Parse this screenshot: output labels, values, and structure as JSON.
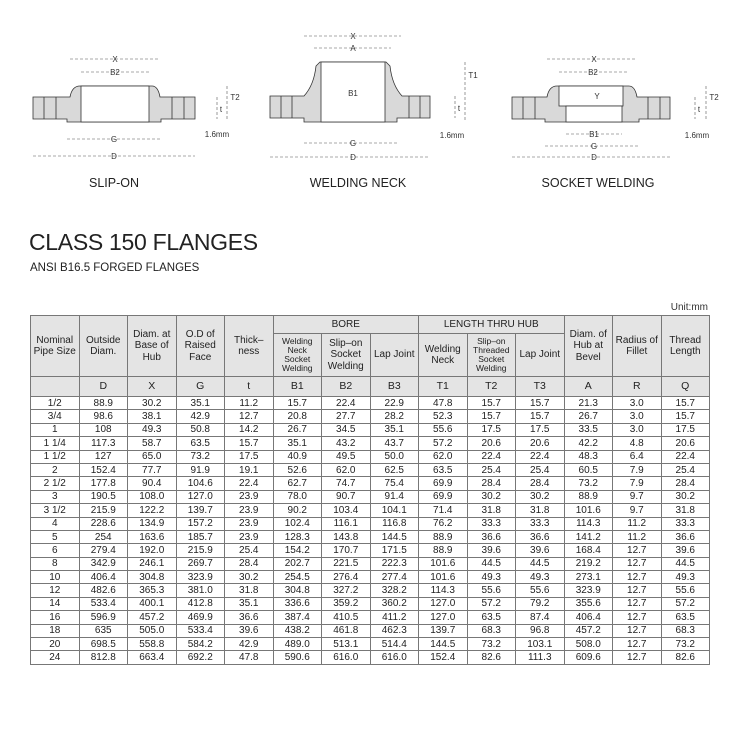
{
  "diagrams": {
    "slip_on": {
      "caption": "SLIP-ON",
      "labels": {
        "x": "X",
        "b2": "B2",
        "g": "G",
        "d": "D",
        "t": "t",
        "t2": "T2",
        "gap": "1.6mm"
      }
    },
    "welding_neck": {
      "caption": "WELDING NECK",
      "labels": {
        "x": "X",
        "a": "A",
        "b1": "B1",
        "g": "G",
        "d": "D",
        "t": "t",
        "t1": "T1",
        "gap": "1.6mm"
      }
    },
    "socket_welding": {
      "caption": "SOCKET WELDING",
      "labels": {
        "x": "X",
        "b2": "B2",
        "y": "Y",
        "b1": "B1",
        "g": "G",
        "d": "D",
        "t": "t",
        "t2": "T2",
        "gap": "1.6mm"
      }
    }
  },
  "title": "CLASS 150 FLANGES",
  "subtitle": "ANSI B16.5 FORGED FLANGES",
  "unit": "Unit:mm",
  "table": {
    "group_headers": {
      "bore": "BORE",
      "length_thru_hub": "LENGTH THRU HUB"
    },
    "headers": [
      "Nominal Pipe Size",
      "Outside Diam.",
      "Diam. at Base of Hub",
      "O.D of Raised Face",
      "Thick–ness",
      "Welding Neck Socket Welding",
      "Slip–on Socket Welding",
      "Lap Joint",
      "Welding Neck",
      "Slip–on Threaded Socket Welding",
      "Lap Joint",
      "Diam. of Hub at Bevel",
      "Radius of Fillet",
      "Thread Length"
    ],
    "symbols": [
      "",
      "D",
      "X",
      "G",
      "t",
      "B1",
      "B2",
      "B3",
      "T1",
      "T2",
      "T3",
      "A",
      "R",
      "Q"
    ],
    "rows": [
      [
        "1/2",
        "88.9",
        "30.2",
        "35.1",
        "11.2",
        "15.7",
        "22.4",
        "22.9",
        "47.8",
        "15.7",
        "15.7",
        "21.3",
        "3.0",
        "15.7"
      ],
      [
        "3/4",
        "98.6",
        "38.1",
        "42.9",
        "12.7",
        "20.8",
        "27.7",
        "28.2",
        "52.3",
        "15.7",
        "15.7",
        "26.7",
        "3.0",
        "15.7"
      ],
      [
        "1",
        "108",
        "49.3",
        "50.8",
        "14.2",
        "26.7",
        "34.5",
        "35.1",
        "55.6",
        "17.5",
        "17.5",
        "33.5",
        "3.0",
        "17.5"
      ],
      [
        "1 1/4",
        "117.3",
        "58.7",
        "63.5",
        "15.7",
        "35.1",
        "43.2",
        "43.7",
        "57.2",
        "20.6",
        "20.6",
        "42.2",
        "4.8",
        "20.6"
      ],
      [
        "1 1/2",
        "127",
        "65.0",
        "73.2",
        "17.5",
        "40.9",
        "49.5",
        "50.0",
        "62.0",
        "22.4",
        "22.4",
        "48.3",
        "6.4",
        "22.4"
      ],
      [
        "2",
        "152.4",
        "77.7",
        "91.9",
        "19.1",
        "52.6",
        "62.0",
        "62.5",
        "63.5",
        "25.4",
        "25.4",
        "60.5",
        "7.9",
        "25.4"
      ],
      [
        "2 1/2",
        "177.8",
        "90.4",
        "104.6",
        "22.4",
        "62.7",
        "74.7",
        "75.4",
        "69.9",
        "28.4",
        "28.4",
        "73.2",
        "7.9",
        "28.4"
      ],
      [
        "3",
        "190.5",
        "108.0",
        "127.0",
        "23.9",
        "78.0",
        "90.7",
        "91.4",
        "69.9",
        "30.2",
        "30.2",
        "88.9",
        "9.7",
        "30.2"
      ],
      [
        "3 1/2",
        "215.9",
        "122.2",
        "139.7",
        "23.9",
        "90.2",
        "103.4",
        "104.1",
        "71.4",
        "31.8",
        "31.8",
        "101.6",
        "9.7",
        "31.8"
      ],
      [
        "4",
        "228.6",
        "134.9",
        "157.2",
        "23.9",
        "102.4",
        "116.1",
        "116.8",
        "76.2",
        "33.3",
        "33.3",
        "114.3",
        "11.2",
        "33.3"
      ],
      [
        "5",
        "254",
        "163.6",
        "185.7",
        "23.9",
        "128.3",
        "143.8",
        "144.5",
        "88.9",
        "36.6",
        "36.6",
        "141.2",
        "11.2",
        "36.6"
      ],
      [
        "6",
        "279.4",
        "192.0",
        "215.9",
        "25.4",
        "154.2",
        "170.7",
        "171.5",
        "88.9",
        "39.6",
        "39.6",
        "168.4",
        "12.7",
        "39.6"
      ],
      [
        "8",
        "342.9",
        "246.1",
        "269.7",
        "28.4",
        "202.7",
        "221.5",
        "222.3",
        "101.6",
        "44.5",
        "44.5",
        "219.2",
        "12.7",
        "44.5"
      ],
      [
        "10",
        "406.4",
        "304.8",
        "323.9",
        "30.2",
        "254.5",
        "276.4",
        "277.4",
        "101.6",
        "49.3",
        "49.3",
        "273.1",
        "12.7",
        "49.3"
      ],
      [
        "12",
        "482.6",
        "365.3",
        "381.0",
        "31.8",
        "304.8",
        "327.2",
        "328.2",
        "114.3",
        "55.6",
        "55.6",
        "323.9",
        "12.7",
        "55.6"
      ],
      [
        "14",
        "533.4",
        "400.1",
        "412.8",
        "35.1",
        "336.6",
        "359.2",
        "360.2",
        "127.0",
        "57.2",
        "79.2",
        "355.6",
        "12.7",
        "57.2"
      ],
      [
        "16",
        "596.9",
        "457.2",
        "469.9",
        "36.6",
        "387.4",
        "410.5",
        "411.2",
        "127.0",
        "63.5",
        "87.4",
        "406.4",
        "12.7",
        "63.5"
      ],
      [
        "18",
        "635",
        "505.0",
        "533.4",
        "39.6",
        "438.2",
        "461.8",
        "462.3",
        "139.7",
        "68.3",
        "96.8",
        "457.2",
        "12.7",
        "68.3"
      ],
      [
        "20",
        "698.5",
        "558.8",
        "584.2",
        "42.9",
        "489.0",
        "513.1",
        "514.4",
        "144.5",
        "73.2",
        "103.1",
        "508.0",
        "12.7",
        "73.2"
      ],
      [
        "24",
        "812.8",
        "663.4",
        "692.2",
        "47.8",
        "590.6",
        "616.0",
        "616.0",
        "152.4",
        "82.6",
        "111.3",
        "609.6",
        "12.7",
        "82.6"
      ]
    ]
  },
  "colors": {
    "header_bg": "#e4e4e4",
    "flange_fill": "#d9d9d9",
    "border": "#777777"
  }
}
